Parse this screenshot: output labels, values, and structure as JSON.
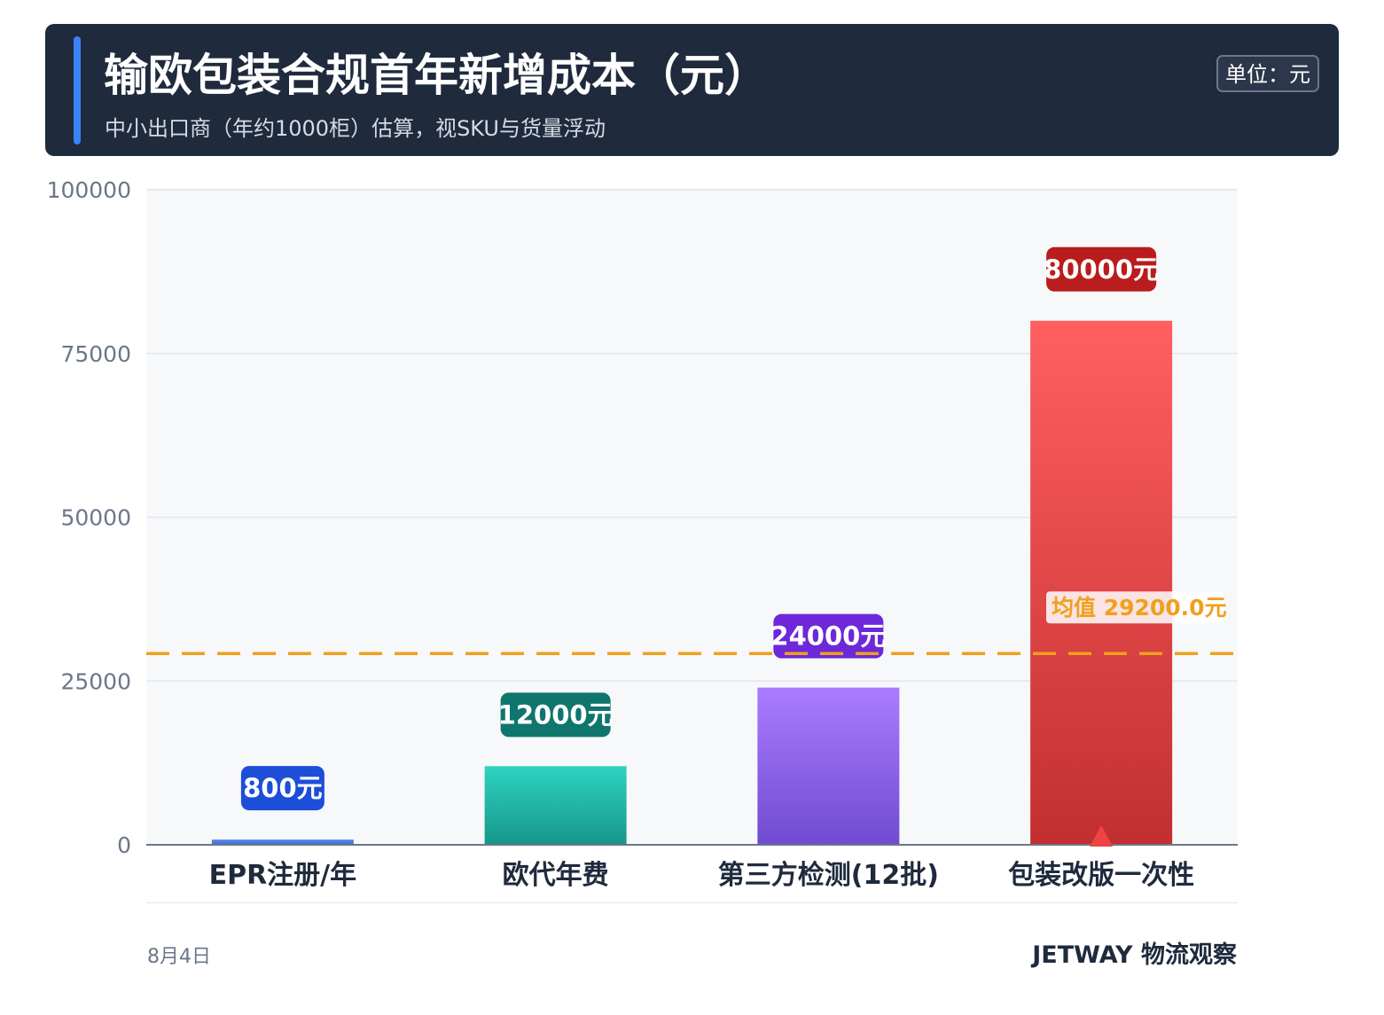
{
  "header": {
    "title": "输欧包装合规首年新增成本（元）",
    "subtitle": "中小出口商（年约1000柜）估算，视SKU与货量浮动",
    "unit_badge": "单位：元"
  },
  "chart_data": {
    "type": "bar",
    "categories": [
      "EPR注册/年",
      "欧代年费",
      "第三方检测(12批)",
      "包装改版一次性"
    ],
    "values": [
      800,
      12000,
      24000,
      80000
    ],
    "value_labels": [
      "800元",
      "12000元",
      "24000元",
      "80000元"
    ],
    "ylim": [
      0,
      100000
    ],
    "yticks": [
      0,
      25000,
      50000,
      75000,
      100000
    ],
    "grid": true,
    "legend": "none",
    "mean": {
      "value": 29200,
      "label": "均值 29200.0元",
      "color": "#f0a01c"
    },
    "max_marker": {
      "category": "包装改版一次性",
      "color": "#ef4444"
    },
    "bar_colors": [
      [
        "#5b8def",
        "#3a6bd0"
      ],
      [
        "#2fd3c0",
        "#15968a"
      ],
      [
        "#ab7bff",
        "#6f4bd0"
      ],
      [
        "#ff5f5f",
        "#c22f30"
      ]
    ],
    "label_colors": [
      "#1d4ed8",
      "#0f766e",
      "#6d28d9",
      "#b91c1c"
    ]
  },
  "footer": {
    "date": "8月4日",
    "brand": "JETWAY 物流观察"
  }
}
